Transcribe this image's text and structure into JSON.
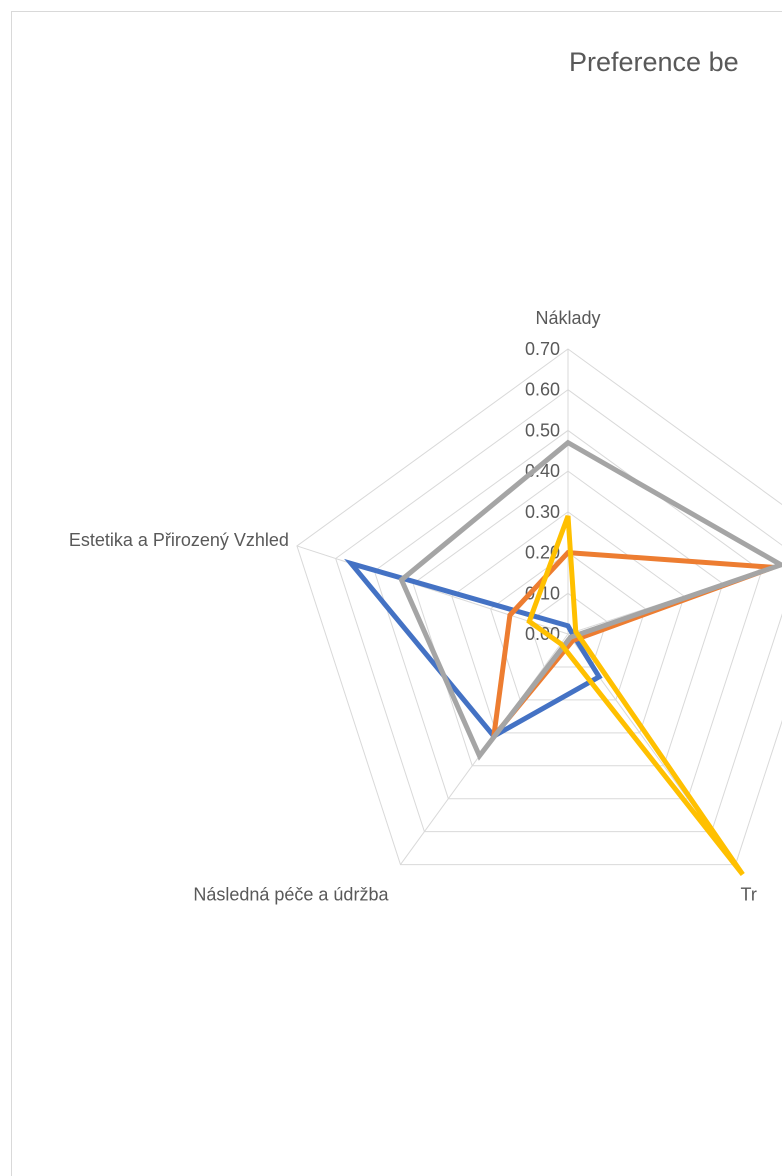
{
  "chart_data": {
    "type": "radar",
    "title": "Preference be",
    "axes": [
      "Náklady",
      "",
      "Tr",
      "Následná péče a údržba",
      "Estetika a Přirozený Vzhled"
    ],
    "ticks": [
      "0.00",
      "0.10",
      "0.20",
      "0.30",
      "0.40",
      "0.50",
      "0.60",
      "0.70"
    ],
    "rmin": 0,
    "rmax": 0.7,
    "grid": true,
    "series": [
      {
        "color": "#4472c4",
        "values": [
          0.02,
          0.01,
          0.13,
          0.31,
          0.56
        ]
      },
      {
        "color": "#ed7d31",
        "values": [
          0.2,
          0.53,
          0.02,
          0.31,
          0.15
        ]
      },
      {
        "color": "#a5a5a5",
        "values": [
          0.47,
          0.55,
          0.01,
          0.37,
          0.43
        ]
      },
      {
        "color": "#ffc000",
        "values": [
          0.29,
          0.02,
          0.73,
          0.03,
          0.1
        ]
      }
    ]
  }
}
